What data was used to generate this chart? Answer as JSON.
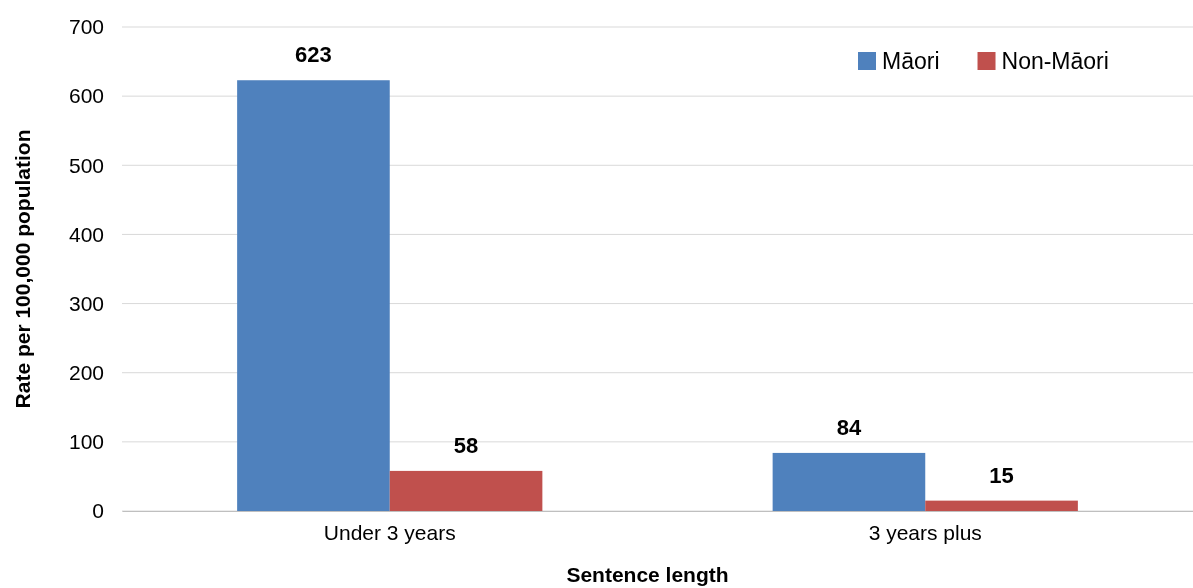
{
  "chart_data": {
    "type": "bar",
    "xlabel": "Sentence length",
    "ylabel": "Rate per 100,000  population",
    "categories": [
      "Under 3 years",
      "3 years plus"
    ],
    "series": [
      {
        "name": "Māori",
        "color": "#4f81bd",
        "values": [
          623,
          84
        ]
      },
      {
        "name": "Non-Māori",
        "color": "#c0504d",
        "values": [
          58,
          15
        ]
      }
    ],
    "ylim": [
      0,
      700
    ],
    "yticks": [
      0,
      100,
      200,
      300,
      400,
      500,
      600,
      700
    ],
    "grid": "y",
    "legend": "top right",
    "data_labels": true
  }
}
